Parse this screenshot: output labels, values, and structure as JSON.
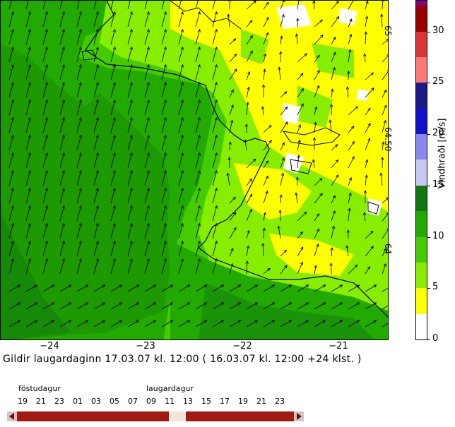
{
  "map": {
    "lon_ticks": [
      "−24",
      "−23",
      "−22",
      "−21"
    ],
    "lat_ticks": [
      "65",
      "64.50",
      "64"
    ]
  },
  "colorbar": {
    "title": "Vindhraði [m/s]",
    "tick_labels": [
      "0",
      "5",
      "10",
      "15",
      "20",
      "25",
      "30"
    ],
    "bands": [
      {
        "range": "0-2.5",
        "color": "#ffffff"
      },
      {
        "range": "2.5-5",
        "color": "#ffff00"
      },
      {
        "range": "5-7.5",
        "color": "#88ee00"
      },
      {
        "range": "7.5-10",
        "color": "#44cc00"
      },
      {
        "range": "10-12.5",
        "color": "#22aa00"
      },
      {
        "range": "12.5-15",
        "color": "#117711"
      },
      {
        "range": "15-17.5",
        "color": "#c8c8f0"
      },
      {
        "range": "17.5-20",
        "color": "#8888ee"
      },
      {
        "range": "20-22.5",
        "color": "#1111cc"
      },
      {
        "range": "22.5-25",
        "color": "#1a1a88"
      },
      {
        "range": "25-27.5",
        "color": "#ff7777"
      },
      {
        "range": "27.5-30",
        "color": "#dd3333"
      },
      {
        "range": "30-32.5",
        "color": "#990000"
      },
      {
        "range": "32.5+",
        "color": "#880088"
      }
    ]
  },
  "caption": "Gildir laugardaginn 17.03.07 kl. 12:00 ( 16.03.07 kl. 12:00 +24 klst. )",
  "timeline": {
    "day1": "föstudagur",
    "day2": "laugardagur",
    "hours": [
      "19",
      "21",
      "23",
      "01",
      "03",
      "05",
      "07",
      "09",
      "11",
      "13",
      "15",
      "17",
      "19",
      "21",
      "23"
    ],
    "selected_hour": "12"
  }
}
